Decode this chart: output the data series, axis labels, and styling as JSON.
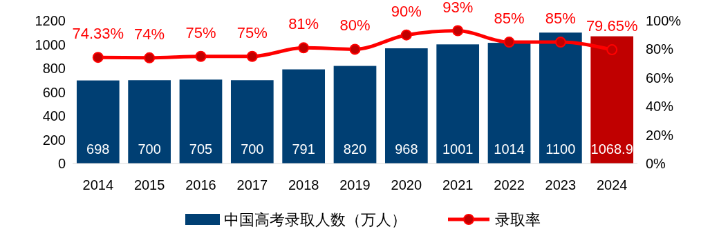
{
  "chart_data": {
    "type": "bar",
    "categories": [
      "2014",
      "2015",
      "2016",
      "2017",
      "2018",
      "2019",
      "2020",
      "2021",
      "2022",
      "2023",
      "2024"
    ],
    "series": [
      {
        "name": "中国高考录取人数（万人）",
        "color": "#003f73",
        "colors": [
          "#003f73",
          "#003f73",
          "#003f73",
          "#003f73",
          "#003f73",
          "#003f73",
          "#003f73",
          "#003f73",
          "#003f73",
          "#003f73",
          "#c00000"
        ],
        "values": [
          698,
          700,
          705,
          700,
          791,
          820,
          968,
          1001,
          1014,
          1100,
          1068.9
        ],
        "value_labels": [
          "698",
          "700",
          "705",
          "700",
          "791",
          "820",
          "968",
          "1001",
          "1014",
          "1100",
          "1068.9"
        ]
      },
      {
        "name": "录取率",
        "type": "line",
        "axis": "y2",
        "color": "#ff0000",
        "values": [
          74.33,
          74,
          75,
          75,
          81,
          80,
          90,
          93,
          85,
          85,
          79.65
        ],
        "value_labels": [
          "74.33%",
          "74%",
          "75%",
          "75%",
          "81%",
          "80%",
          "90%",
          "93%",
          "85%",
          "85%",
          "79.65%"
        ]
      }
    ],
    "ylim": [
      0,
      1200
    ],
    "yticks": [
      0,
      200,
      400,
      600,
      800,
      1000,
      1200
    ],
    "y2lim": [
      0,
      100
    ],
    "y2ticks": [
      {
        "value": 0,
        "label": "0%"
      },
      {
        "value": 20,
        "label": "20%"
      },
      {
        "value": 40,
        "label": "40%"
      },
      {
        "value": 60,
        "label": "60%"
      },
      {
        "value": 80,
        "label": "80%"
      },
      {
        "value": 100,
        "label": "100%"
      }
    ],
    "legend": "bottom",
    "marker": "circle",
    "line_style": "solid",
    "grid": false
  }
}
